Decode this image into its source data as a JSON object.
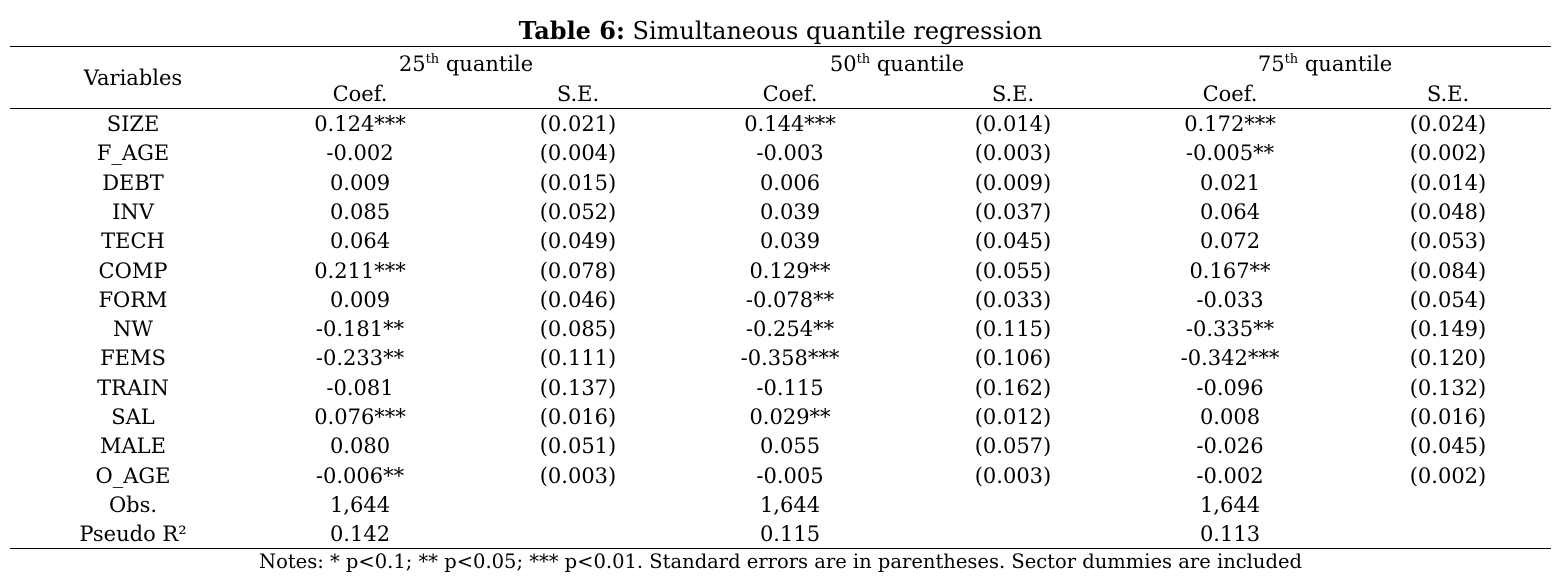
{
  "table": {
    "title_bold": "Table 6:",
    "title_rest": " Simultaneous quantile regression",
    "header_variables": "Variables",
    "quantiles": [
      {
        "num": "25",
        "sup": "th",
        "label": " quantile"
      },
      {
        "num": "50",
        "sup": "th",
        "label": " quantile"
      },
      {
        "num": "75",
        "sup": "th",
        "label": " quantile"
      }
    ],
    "subheaders": [
      "Coef.",
      "S.E.",
      "Coef.",
      "S.E.",
      "Coef.",
      "S.E."
    ],
    "rows": [
      {
        "var": "SIZE",
        "cells": [
          "0.124***",
          "(0.021)",
          "0.144***",
          "(0.014)",
          "0.172***",
          "(0.024)"
        ]
      },
      {
        "var": "F_AGE",
        "cells": [
          "-0.002",
          "(0.004)",
          "-0.003",
          "(0.003)",
          "-0.005**",
          "(0.002)"
        ]
      },
      {
        "var": "DEBT",
        "cells": [
          "0.009",
          "(0.015)",
          "0.006",
          "(0.009)",
          "0.021",
          "(0.014)"
        ]
      },
      {
        "var": "INV",
        "cells": [
          "0.085",
          "(0.052)",
          "0.039",
          "(0.037)",
          "0.064",
          "(0.048)"
        ]
      },
      {
        "var": "TECH",
        "cells": [
          "0.064",
          "(0.049)",
          "0.039",
          "(0.045)",
          "0.072",
          "(0.053)"
        ]
      },
      {
        "var": "COMP",
        "cells": [
          "0.211***",
          "(0.078)",
          "0.129**",
          "(0.055)",
          "0.167**",
          "(0.084)"
        ]
      },
      {
        "var": "FORM",
        "cells": [
          "0.009",
          "(0.046)",
          "-0.078**",
          "(0.033)",
          "-0.033",
          "(0.054)"
        ]
      },
      {
        "var": "NW",
        "cells": [
          "-0.181**",
          "(0.085)",
          "-0.254**",
          "(0.115)",
          "-0.335**",
          "(0.149)"
        ]
      },
      {
        "var": "FEMS",
        "cells": [
          "-0.233**",
          "(0.111)",
          "-0.358***",
          "(0.106)",
          "-0.342***",
          "(0.120)"
        ]
      },
      {
        "var": "TRAIN",
        "cells": [
          "-0.081",
          "(0.137)",
          "-0.115",
          "(0.162)",
          "-0.096",
          "(0.132)"
        ]
      },
      {
        "var": "SAL",
        "cells": [
          "0.076***",
          "(0.016)",
          "0.029**",
          "(0.012)",
          "0.008",
          "(0.016)"
        ]
      },
      {
        "var": "MALE",
        "cells": [
          "0.080",
          "(0.051)",
          "0.055",
          "(0.057)",
          "-0.026",
          "(0.045)"
        ]
      },
      {
        "var": "O_AGE",
        "cells": [
          "-0.006**",
          "(0.003)",
          "-0.005",
          "(0.003)",
          "-0.002",
          "(0.002)"
        ]
      },
      {
        "var": "Obs.",
        "cells": [
          "1,644",
          "",
          "1,644",
          "",
          "1,644",
          ""
        ]
      },
      {
        "var": "Pseudo R²",
        "cells": [
          "0.142",
          "",
          "0.115",
          "",
          "0.113",
          ""
        ]
      }
    ],
    "notes": "Notes: * p<0.1; ** p<0.05; *** p<0.01. Standard errors are in parentheses. Sector dummies are included"
  }
}
